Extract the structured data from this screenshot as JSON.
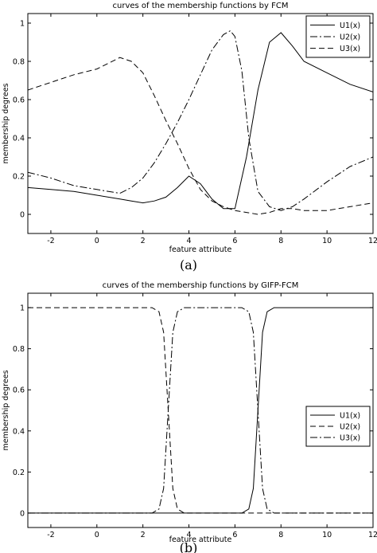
{
  "chart_data": [
    {
      "type": "line",
      "title": "curves of the membership functions by FCM",
      "xlabel": "feature attribute",
      "ylabel": "membership degrees",
      "caption": "(a)",
      "xlim": [
        -3,
        12
      ],
      "ylim": [
        -0.1,
        1.05
      ],
      "xticks": [
        -2,
        0,
        2,
        4,
        6,
        8,
        10,
        12
      ],
      "yticks": [
        0,
        0.2,
        0.4,
        0.6,
        0.8,
        1
      ],
      "ytick_labels": [
        "0",
        "0.2",
        "0.4",
        "0.6",
        "0.8",
        "1"
      ],
      "legend_position": "top-right",
      "series": [
        {
          "name": "U1(x)",
          "dash": "solid",
          "x": [
            -3,
            -2,
            -1,
            0,
            1,
            1.5,
            2,
            2.5,
            3,
            3.5,
            4,
            4.5,
            5,
            5.5,
            6,
            6.5,
            7,
            7.5,
            8,
            8.5,
            9,
            10,
            11,
            12
          ],
          "y": [
            0.14,
            0.13,
            0.12,
            0.1,
            0.08,
            0.07,
            0.06,
            0.07,
            0.09,
            0.14,
            0.2,
            0.16,
            0.08,
            0.03,
            0.03,
            0.3,
            0.65,
            0.9,
            0.95,
            0.88,
            0.8,
            0.74,
            0.68,
            0.64
          ]
        },
        {
          "name": "U2(x)",
          "dash": "dashdot",
          "x": [
            -3,
            -2,
            -1,
            0,
            1,
            1.5,
            2,
            2.5,
            3,
            3.5,
            4,
            4.5,
            5,
            5.5,
            5.8,
            6,
            6.3,
            6.6,
            7,
            7.5,
            8,
            8.5,
            9,
            10,
            11,
            12
          ],
          "y": [
            0.22,
            0.19,
            0.15,
            0.13,
            0.11,
            0.14,
            0.19,
            0.27,
            0.37,
            0.48,
            0.6,
            0.73,
            0.86,
            0.94,
            0.96,
            0.93,
            0.75,
            0.4,
            0.12,
            0.04,
            0.02,
            0.04,
            0.08,
            0.17,
            0.25,
            0.3
          ]
        },
        {
          "name": "U3(x)",
          "dash": "dashed",
          "x": [
            -3,
            -2,
            -1,
            0,
            0.5,
            1,
            1.5,
            2,
            2.5,
            3,
            3.5,
            4,
            4.5,
            5,
            5.5,
            6,
            6.5,
            7,
            7.5,
            8,
            8.5,
            9,
            10,
            11,
            12
          ],
          "y": [
            0.65,
            0.69,
            0.73,
            0.76,
            0.79,
            0.82,
            0.8,
            0.74,
            0.62,
            0.49,
            0.37,
            0.24,
            0.13,
            0.07,
            0.04,
            0.02,
            0.01,
            0.0,
            0.01,
            0.03,
            0.03,
            0.02,
            0.02,
            0.04,
            0.06
          ]
        }
      ]
    },
    {
      "type": "line",
      "title": "curves of the membership functions by GIFP-FCM",
      "xlabel": "feature attribute",
      "ylabel": "membership degrees",
      "caption": "(b)",
      "xlim": [
        -3,
        12
      ],
      "ylim": [
        -0.07,
        1.07
      ],
      "xticks": [
        -2,
        0,
        2,
        4,
        6,
        8,
        10,
        12
      ],
      "yticks": [
        0,
        0.2,
        0.4,
        0.6,
        0.8,
        1
      ],
      "ytick_labels": [
        "0",
        "0.2",
        "0.4",
        "0.6",
        "0.8",
        "1"
      ],
      "legend_position": "top-right",
      "series": [
        {
          "name": "U1(x)",
          "dash": "solid",
          "x": [
            -3,
            6.3,
            6.6,
            6.8,
            7.0,
            7.2,
            7.4,
            7.7,
            12
          ],
          "y": [
            0,
            0,
            0.02,
            0.12,
            0.5,
            0.88,
            0.98,
            1,
            1
          ]
        },
        {
          "name": "U2(x)",
          "dash": "dashed",
          "x": [
            -3,
            2.4,
            2.7,
            2.9,
            3.1,
            3.3,
            3.5,
            3.8,
            12
          ],
          "y": [
            1,
            1,
            0.98,
            0.88,
            0.5,
            0.12,
            0.02,
            0,
            0
          ]
        },
        {
          "name": "U3(x)",
          "dash": "dashdot",
          "x": [
            -3,
            2.4,
            2.7,
            2.9,
            3.1,
            3.3,
            3.5,
            3.8,
            6.3,
            6.6,
            6.8,
            7.0,
            7.2,
            7.4,
            7.7,
            12
          ],
          "y": [
            0,
            0,
            0.02,
            0.12,
            0.5,
            0.88,
            0.98,
            1,
            1,
            0.98,
            0.88,
            0.5,
            0.12,
            0.02,
            0,
            0
          ]
        }
      ]
    }
  ]
}
